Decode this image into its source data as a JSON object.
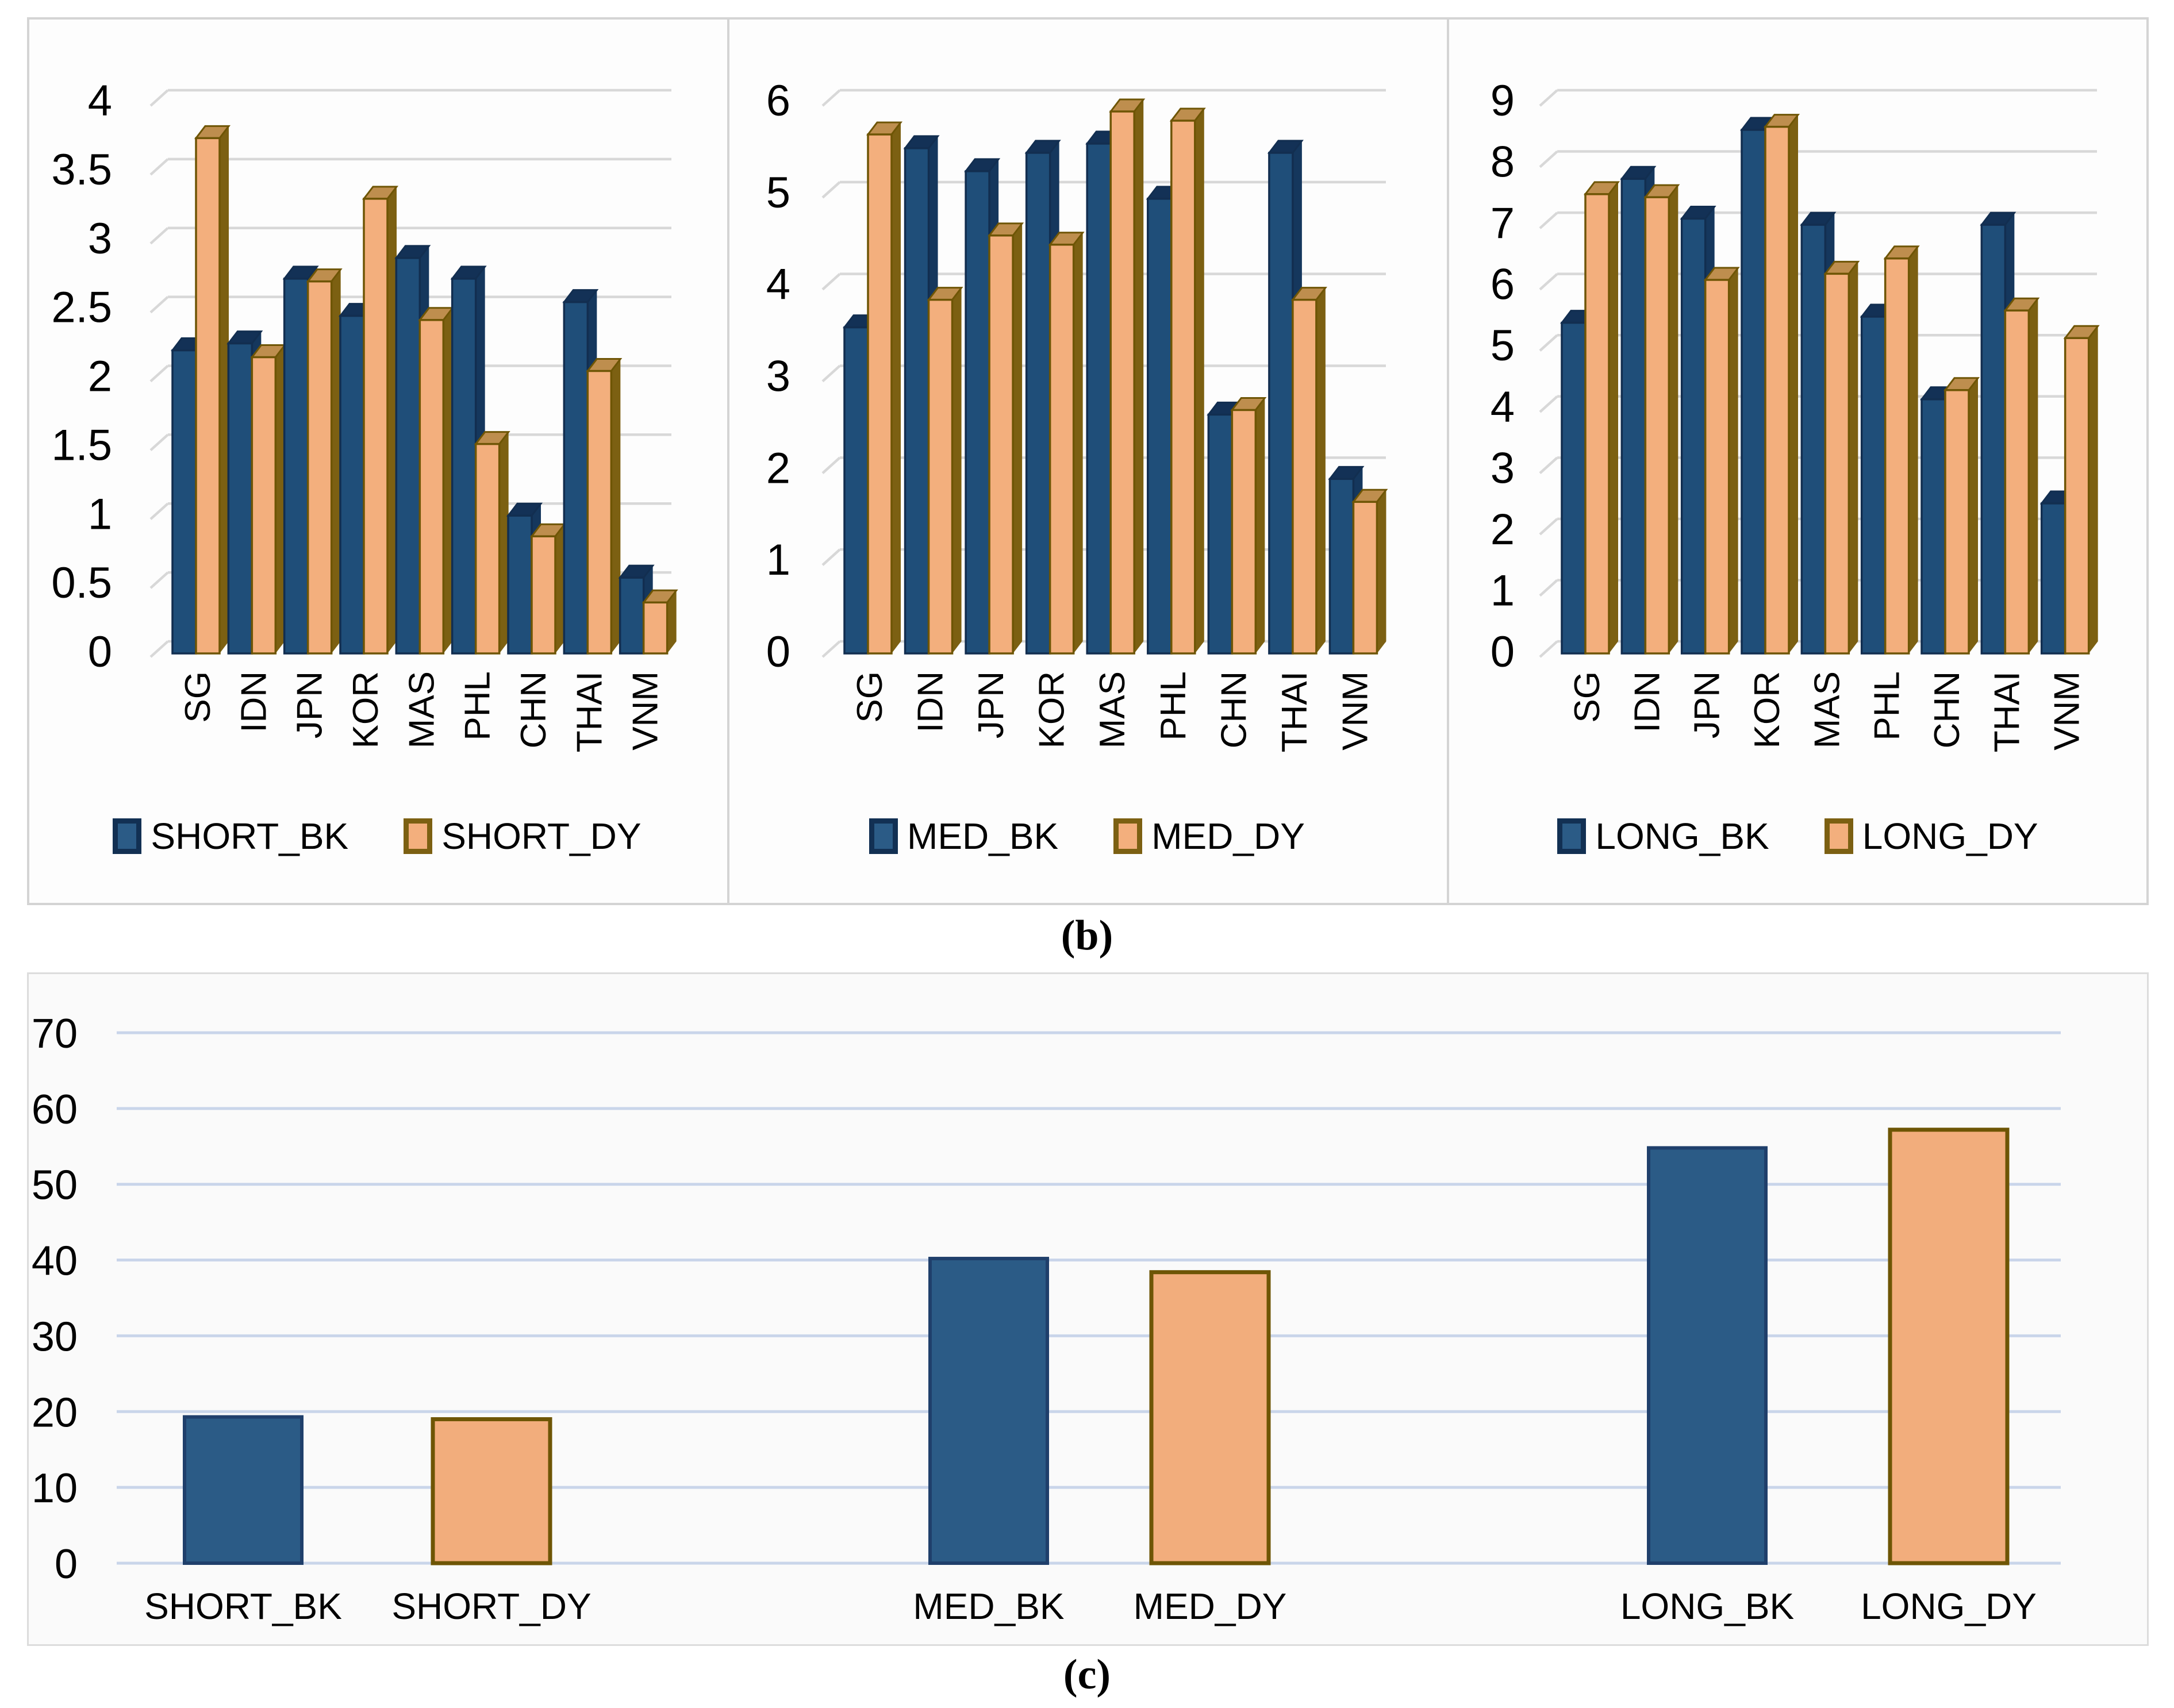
{
  "panel_labels": {
    "b": "(b)",
    "c": "(c)"
  },
  "colors": {
    "bar_blue_front": "#1F4E79",
    "bar_blue_side": "#15375D",
    "bar_blue_top": "#133156",
    "bar_blue_edge": "#122E50",
    "bar_orange_front": "#F3AF7D",
    "bar_orange_side": "#7C6012",
    "bar_orange_top": "#BE8E4E",
    "bar_orange_edge": "#6E5505",
    "flat_blue_fill": "#2B5B86",
    "flat_blue_border": "#1F3F6B",
    "flat_orange_fill": "#F2AD7C",
    "flat_orange_border": "#6E5505",
    "grid_3d": "#D8D8D8",
    "grid_flat": "#C9D5EA",
    "panel_border": "#D4D4D4",
    "text": "#000000"
  },
  "chart_data": [
    {
      "id": "short",
      "type": "bar",
      "style": "3d-column",
      "panel": "b",
      "title": "",
      "categories": [
        "SG",
        "IDN",
        "JPN",
        "KOR",
        "MAS",
        "PHL",
        "CHN",
        "THAI",
        "VNM"
      ],
      "series": [
        {
          "name": "SHORT_BK",
          "color": "blue",
          "values": [
            2.2,
            2.25,
            2.72,
            2.45,
            2.87,
            2.72,
            1.0,
            2.55,
            0.55
          ]
        },
        {
          "name": "SHORT_DY",
          "color": "orange",
          "values": [
            3.74,
            2.15,
            2.7,
            3.3,
            2.42,
            1.52,
            0.85,
            2.05,
            0.37
          ]
        }
      ],
      "ylim": [
        0,
        4
      ],
      "ytick_step": 0.5,
      "grid": true,
      "legend_position": "bottom"
    },
    {
      "id": "med",
      "type": "bar",
      "style": "3d-column",
      "panel": "b",
      "title": "",
      "categories": [
        "SG",
        "IDN",
        "JPN",
        "KOR",
        "MAS",
        "PHL",
        "CHN",
        "THAI",
        "VNM"
      ],
      "series": [
        {
          "name": "MED_BK",
          "color": "blue",
          "values": [
            3.55,
            5.5,
            5.25,
            5.45,
            5.55,
            4.95,
            2.6,
            5.45,
            1.9
          ]
        },
        {
          "name": "MED_DY",
          "color": "orange",
          "values": [
            5.65,
            3.85,
            4.55,
            4.45,
            5.9,
            5.8,
            2.65,
            3.85,
            1.65
          ]
        }
      ],
      "ylim": [
        0,
        6
      ],
      "ytick_step": 1,
      "grid": true,
      "legend_position": "bottom"
    },
    {
      "id": "long",
      "type": "bar",
      "style": "3d-column",
      "panel": "b",
      "title": "",
      "categories": [
        "SG",
        "IDN",
        "JPN",
        "KOR",
        "MAS",
        "PHL",
        "CHN",
        "THAI",
        "VNM"
      ],
      "series": [
        {
          "name": "LONG_BK",
          "color": "blue",
          "values": [
            5.4,
            7.75,
            7.1,
            8.55,
            7.0,
            5.5,
            4.15,
            7.0,
            2.45
          ]
        },
        {
          "name": "LONG_DY",
          "color": "orange",
          "values": [
            7.5,
            7.45,
            6.1,
            8.6,
            6.2,
            6.45,
            4.3,
            5.6,
            5.15
          ]
        }
      ],
      "ylim": [
        0,
        9
      ],
      "ytick_step": 1,
      "grid": true,
      "legend_position": "bottom"
    },
    {
      "id": "summary",
      "type": "bar",
      "style": "flat-column",
      "panel": "c",
      "title": "",
      "categories": [
        "SHORT_BK",
        "SHORT_DY",
        "MED_BK",
        "MED_DY",
        "LONG_BK",
        "LONG_DY"
      ],
      "bar_colors": [
        "blue",
        "orange",
        "blue",
        "orange",
        "blue",
        "orange"
      ],
      "series": [
        {
          "name": "overall",
          "values": [
            19.3,
            19.0,
            40.2,
            38.4,
            54.8,
            57.2
          ]
        }
      ],
      "ylim": [
        0,
        70
      ],
      "ytick_step": 10,
      "grid": true,
      "legend_position": "none"
    }
  ]
}
